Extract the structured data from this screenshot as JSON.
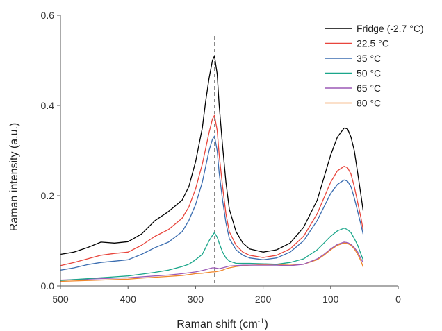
{
  "chart_data": {
    "type": "line",
    "title": "",
    "xlabel": "Raman shift (cm",
    "xlabel_sup": "-1",
    "xlabel_end": ")",
    "ylabel": "Raman intensity (a.u.)",
    "xlim": [
      500,
      0
    ],
    "ylim": [
      0,
      0.6
    ],
    "x_reversed": true,
    "x_ticks": [
      500,
      400,
      300,
      200,
      100,
      0
    ],
    "x_tick_labels": [
      "500",
      "400",
      "300",
      "200",
      "100",
      "0"
    ],
    "y_ticks": [
      0,
      0.2,
      0.4,
      0.6
    ],
    "y_tick_labels": [
      "0.0",
      "0.2",
      "0.4",
      "0.6"
    ],
    "grid": false,
    "legend_position": "top-right",
    "reference_line": {
      "x": 272,
      "style": "dashed",
      "color": "#888888"
    },
    "x": [
      500,
      480,
      460,
      440,
      420,
      400,
      380,
      360,
      340,
      320,
      310,
      300,
      290,
      285,
      280,
      275,
      272,
      268,
      265,
      260,
      255,
      250,
      240,
      230,
      220,
      200,
      180,
      160,
      140,
      120,
      110,
      100,
      90,
      80,
      75,
      70,
      65,
      60,
      55,
      52
    ],
    "series": [
      {
        "name": "Fridge (-2.7 °C)",
        "color": "#000000",
        "values": [
          0.07,
          0.075,
          0.085,
          0.097,
          0.095,
          0.098,
          0.115,
          0.145,
          0.165,
          0.19,
          0.22,
          0.275,
          0.35,
          0.41,
          0.46,
          0.5,
          0.51,
          0.47,
          0.4,
          0.31,
          0.23,
          0.17,
          0.12,
          0.095,
          0.082,
          0.075,
          0.08,
          0.095,
          0.13,
          0.19,
          0.24,
          0.29,
          0.33,
          0.35,
          0.348,
          0.33,
          0.3,
          0.25,
          0.2,
          0.167
        ]
      },
      {
        "name": "22.5 °C",
        "color": "#e8453c",
        "values": [
          0.045,
          0.052,
          0.06,
          0.068,
          0.072,
          0.075,
          0.09,
          0.11,
          0.125,
          0.15,
          0.175,
          0.215,
          0.27,
          0.305,
          0.34,
          0.37,
          0.378,
          0.345,
          0.29,
          0.22,
          0.16,
          0.12,
          0.09,
          0.075,
          0.068,
          0.063,
          0.068,
          0.082,
          0.11,
          0.16,
          0.195,
          0.23,
          0.255,
          0.265,
          0.262,
          0.248,
          0.22,
          0.185,
          0.15,
          0.125
        ]
      },
      {
        "name": "35 °C",
        "color": "#3b6db0",
        "values": [
          0.035,
          0.04,
          0.047,
          0.052,
          0.055,
          0.058,
          0.07,
          0.085,
          0.097,
          0.12,
          0.145,
          0.18,
          0.23,
          0.265,
          0.3,
          0.325,
          0.332,
          0.3,
          0.25,
          0.19,
          0.14,
          0.105,
          0.08,
          0.068,
          0.062,
          0.058,
          0.062,
          0.075,
          0.1,
          0.145,
          0.175,
          0.205,
          0.225,
          0.235,
          0.232,
          0.22,
          0.195,
          0.165,
          0.135,
          0.115
        ]
      },
      {
        "name": "50 °C",
        "color": "#1aa68a",
        "values": [
          0.012,
          0.014,
          0.016,
          0.018,
          0.02,
          0.022,
          0.026,
          0.03,
          0.035,
          0.043,
          0.048,
          0.058,
          0.07,
          0.085,
          0.1,
          0.112,
          0.118,
          0.108,
          0.095,
          0.075,
          0.062,
          0.055,
          0.05,
          0.05,
          0.05,
          0.049,
          0.048,
          0.052,
          0.06,
          0.08,
          0.095,
          0.11,
          0.122,
          0.128,
          0.125,
          0.118,
          0.105,
          0.09,
          0.07,
          0.058
        ]
      },
      {
        "name": "65 °C",
        "color": "#9b59b6",
        "values": [
          0.013,
          0.014,
          0.015,
          0.016,
          0.017,
          0.018,
          0.02,
          0.022,
          0.024,
          0.027,
          0.029,
          0.031,
          0.034,
          0.036,
          0.038,
          0.04,
          0.04,
          0.039,
          0.038,
          0.04,
          0.042,
          0.044,
          0.045,
          0.046,
          0.046,
          0.046,
          0.046,
          0.045,
          0.048,
          0.06,
          0.07,
          0.082,
          0.092,
          0.097,
          0.096,
          0.092,
          0.085,
          0.075,
          0.06,
          0.052
        ]
      },
      {
        "name": "80 °C",
        "color": "#f0862a",
        "values": [
          0.01,
          0.011,
          0.012,
          0.013,
          0.014,
          0.015,
          0.017,
          0.019,
          0.021,
          0.023,
          0.025,
          0.027,
          0.028,
          0.029,
          0.03,
          0.031,
          0.031,
          0.032,
          0.033,
          0.035,
          0.038,
          0.04,
          0.043,
          0.045,
          0.046,
          0.047,
          0.047,
          0.046,
          0.048,
          0.058,
          0.068,
          0.08,
          0.09,
          0.095,
          0.094,
          0.09,
          0.082,
          0.07,
          0.055,
          0.042
        ]
      }
    ]
  }
}
